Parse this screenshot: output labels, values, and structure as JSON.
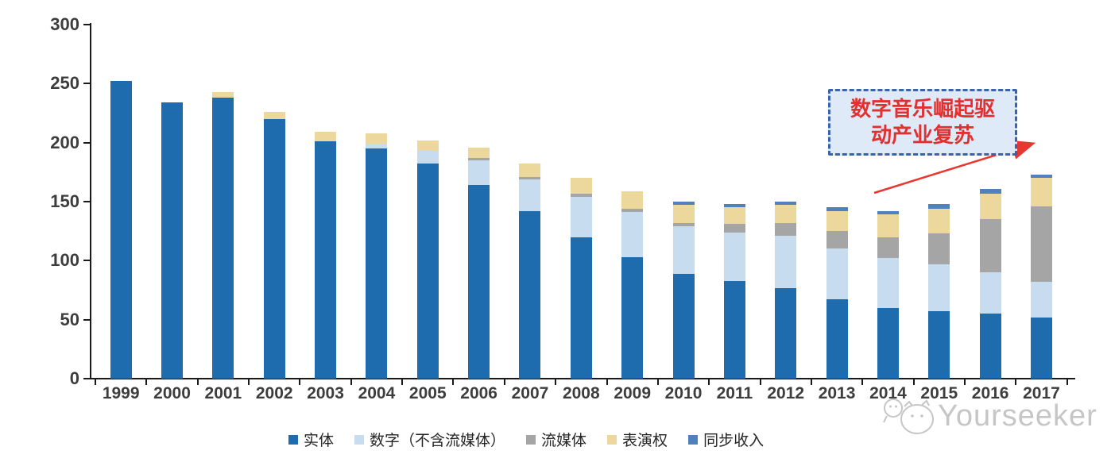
{
  "chart_data": {
    "type": "bar",
    "stacked": true,
    "title": "",
    "xlabel": "",
    "ylabel": "",
    "categories": [
      "1999",
      "2000",
      "2001",
      "2002",
      "2003",
      "2004",
      "2005",
      "2006",
      "2007",
      "2008",
      "2009",
      "2010",
      "2011",
      "2012",
      "2013",
      "2014",
      "2015",
      "2016",
      "2017"
    ],
    "series": [
      {
        "name": "实体",
        "color": "#1e6cad",
        "values": [
          252,
          234,
          238,
          220,
          201,
          195,
          182,
          164,
          142,
          120,
          103,
          89,
          83,
          77,
          67,
          60,
          57,
          55,
          52
        ]
      },
      {
        "name": "数字（不含流媒体）",
        "color": "#c8dcf0",
        "values": [
          0,
          0,
          0,
          0,
          0,
          4,
          11,
          21,
          27,
          34,
          38,
          40,
          41,
          44,
          43,
          42,
          40,
          35,
          30
        ]
      },
      {
        "name": "流媒体",
        "color": "#a5a5a5",
        "values": [
          0,
          0,
          0,
          0,
          0,
          0,
          0,
          2,
          2,
          3,
          3,
          3,
          7,
          11,
          15,
          18,
          26,
          45,
          64
        ]
      },
      {
        "name": "表演权",
        "color": "#ecd89d",
        "values": [
          0,
          0,
          5,
          6,
          8,
          9,
          9,
          9,
          11,
          13,
          15,
          15,
          14,
          15,
          17,
          19,
          21,
          22,
          24
        ]
      },
      {
        "name": "同步收入",
        "color": "#4f81bd",
        "values": [
          0,
          0,
          0,
          0,
          0,
          0,
          0,
          0,
          0,
          0,
          0,
          3,
          3,
          3,
          3,
          3,
          4,
          4,
          3
        ]
      }
    ],
    "ylim": [
      0,
      300
    ],
    "yticks": [
      0,
      50,
      100,
      150,
      200,
      250,
      300
    ],
    "grid": false,
    "legend_position": "bottom"
  },
  "annotation": {
    "line1": "数字音乐崛起驱",
    "line2": "动产业复苏",
    "full_text": "数字音乐崛起驱动产业复苏"
  },
  "watermark": {
    "brand": "Yourseeker"
  }
}
